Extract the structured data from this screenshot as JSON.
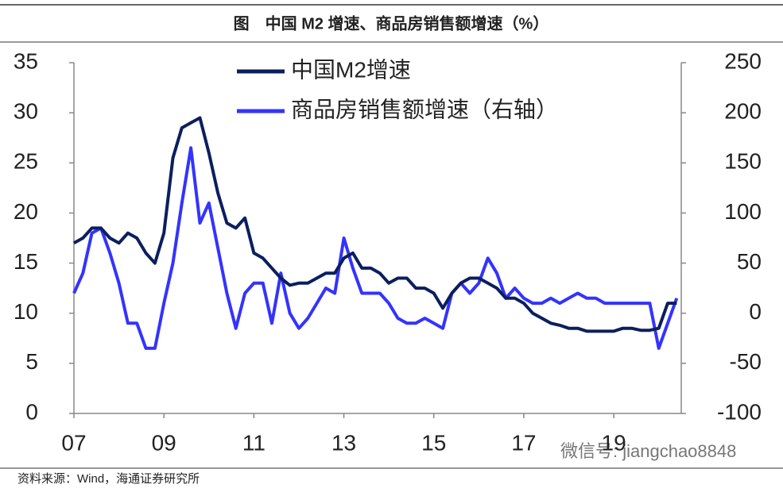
{
  "chart_data": {
    "type": "line",
    "title": "图　中国 M2 增速、商品房销售额增速（%）",
    "source": "资料来源：Wind，海通证券研究所",
    "watermark": "微信号: jiangchao8848",
    "x": [
      2007.0,
      2007.2,
      2007.4,
      2007.6,
      2007.8,
      2008.0,
      2008.2,
      2008.4,
      2008.6,
      2008.8,
      2009.0,
      2009.2,
      2009.4,
      2009.6,
      2009.8,
      2010.0,
      2010.2,
      2010.4,
      2010.6,
      2010.8,
      2011.0,
      2011.2,
      2011.4,
      2011.6,
      2011.8,
      2012.0,
      2012.2,
      2012.4,
      2012.6,
      2012.8,
      2013.0,
      2013.2,
      2013.4,
      2013.6,
      2013.8,
      2014.0,
      2014.2,
      2014.4,
      2014.6,
      2014.8,
      2015.0,
      2015.2,
      2015.4,
      2015.6,
      2015.8,
      2016.0,
      2016.2,
      2016.4,
      2016.6,
      2016.8,
      2017.0,
      2017.2,
      2017.4,
      2017.6,
      2017.8,
      2018.0,
      2018.2,
      2018.4,
      2018.6,
      2018.8,
      2019.0,
      2019.2,
      2019.4,
      2019.6,
      2019.8,
      2020.0,
      2020.2,
      2020.4
    ],
    "series": [
      {
        "name": "中国M2增速",
        "color": "#0b1f5e",
        "values": [
          17,
          17.5,
          18.5,
          18.5,
          17.5,
          17,
          18,
          17.5,
          16,
          15,
          18,
          25.5,
          28.5,
          29,
          29.5,
          26,
          22,
          19,
          18.5,
          19.5,
          16,
          15.5,
          14.5,
          13.5,
          12.8,
          13,
          13,
          13.5,
          14,
          14,
          15.5,
          16,
          14.5,
          14.5,
          14,
          13,
          13.5,
          13.5,
          12.5,
          12.5,
          12,
          10.5,
          12,
          13,
          13.5,
          13.5,
          13,
          12.5,
          11.5,
          11.5,
          11,
          10,
          9.5,
          9,
          8.8,
          8.5,
          8.5,
          8.2,
          8.2,
          8.2,
          8.2,
          8.5,
          8.5,
          8.3,
          8.3,
          8.5,
          11,
          11
        ]
      },
      {
        "name": "商品房销售额增速（右轴）",
        "color": "#3333ff",
        "axis": "y2",
        "values": [
          20,
          40,
          80,
          85,
          60,
          30,
          -10,
          -10,
          -35,
          -35,
          10,
          50,
          110,
          165,
          90,
          110,
          65,
          20,
          -15,
          20,
          30,
          30,
          -10,
          40,
          0,
          -15,
          -5,
          10,
          25,
          20,
          75,
          45,
          20,
          20,
          20,
          10,
          -5,
          -10,
          -10,
          -5,
          -10,
          -15,
          20,
          30,
          20,
          30,
          55,
          40,
          15,
          25,
          15,
          10,
          10,
          15,
          10,
          15,
          20,
          15,
          15,
          10,
          10,
          10,
          10,
          10,
          10,
          -35,
          -10,
          15
        ]
      }
    ],
    "xlim": [
      2007,
      2020.5
    ],
    "xticks": [
      {
        "value": 2007,
        "label": "07"
      },
      {
        "value": 2009,
        "label": "09"
      },
      {
        "value": 2011,
        "label": "11"
      },
      {
        "value": 2013,
        "label": "13"
      },
      {
        "value": 2015,
        "label": "15"
      },
      {
        "value": 2017,
        "label": "17"
      },
      {
        "value": 2019,
        "label": "19"
      }
    ],
    "ylim": [
      0,
      35
    ],
    "yticks": [
      0,
      5,
      10,
      15,
      20,
      25,
      30,
      35
    ],
    "y2lim": [
      -100,
      250
    ],
    "y2ticks": [
      -100,
      -50,
      0,
      50,
      100,
      150,
      200,
      250
    ],
    "grid": false
  }
}
